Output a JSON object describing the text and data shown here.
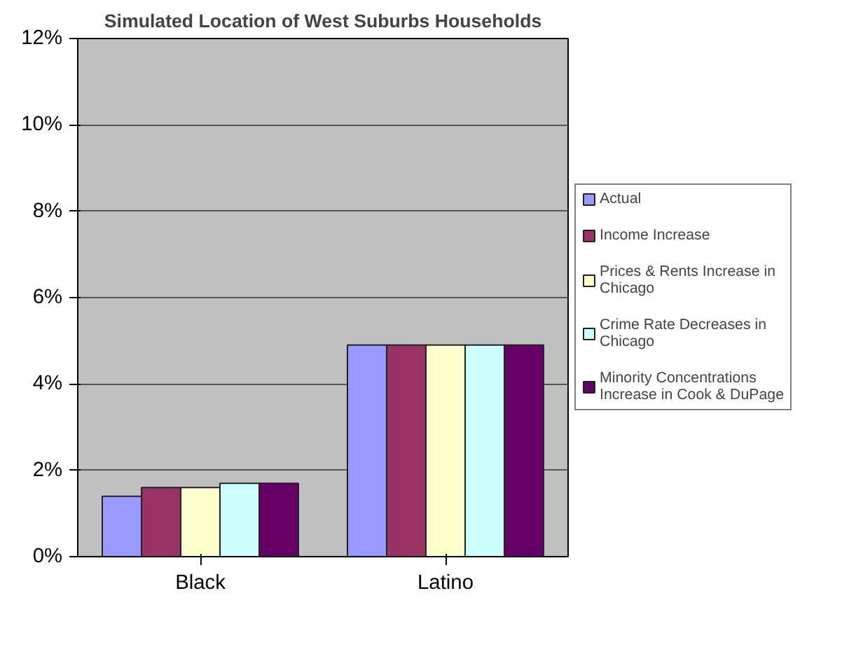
{
  "chart_data": {
    "type": "bar",
    "title": "Simulated Location of West Suburbs Households",
    "categories": [
      "Black",
      "Latino"
    ],
    "series": [
      {
        "name": "Actual",
        "color": "#9999ff",
        "values": [
          1.4,
          4.9
        ]
      },
      {
        "name": "Income Increase",
        "color": "#993366",
        "values": [
          1.6,
          4.9
        ]
      },
      {
        "name": "Prices & Rents Increase in Chicago",
        "color": "#ffffcc",
        "values": [
          1.6,
          4.9
        ]
      },
      {
        "name": "Crime Rate Decreases in Chicago",
        "color": "#ccffff",
        "values": [
          1.7,
          4.9
        ]
      },
      {
        "name": "Minority Concentrations Increase in Cook & DuPage",
        "color": "#660066",
        "values": [
          1.7,
          4.9
        ]
      }
    ],
    "ylim": [
      0,
      12
    ],
    "yticks": [
      {
        "value": 0,
        "label": "0%"
      },
      {
        "value": 2,
        "label": "2%"
      },
      {
        "value": 4,
        "label": "4%"
      },
      {
        "value": 6,
        "label": "6%"
      },
      {
        "value": 8,
        "label": "8%"
      },
      {
        "value": 10,
        "label": "10%"
      },
      {
        "value": 12,
        "label": "12%"
      }
    ],
    "grid": "y",
    "legend": "right"
  }
}
